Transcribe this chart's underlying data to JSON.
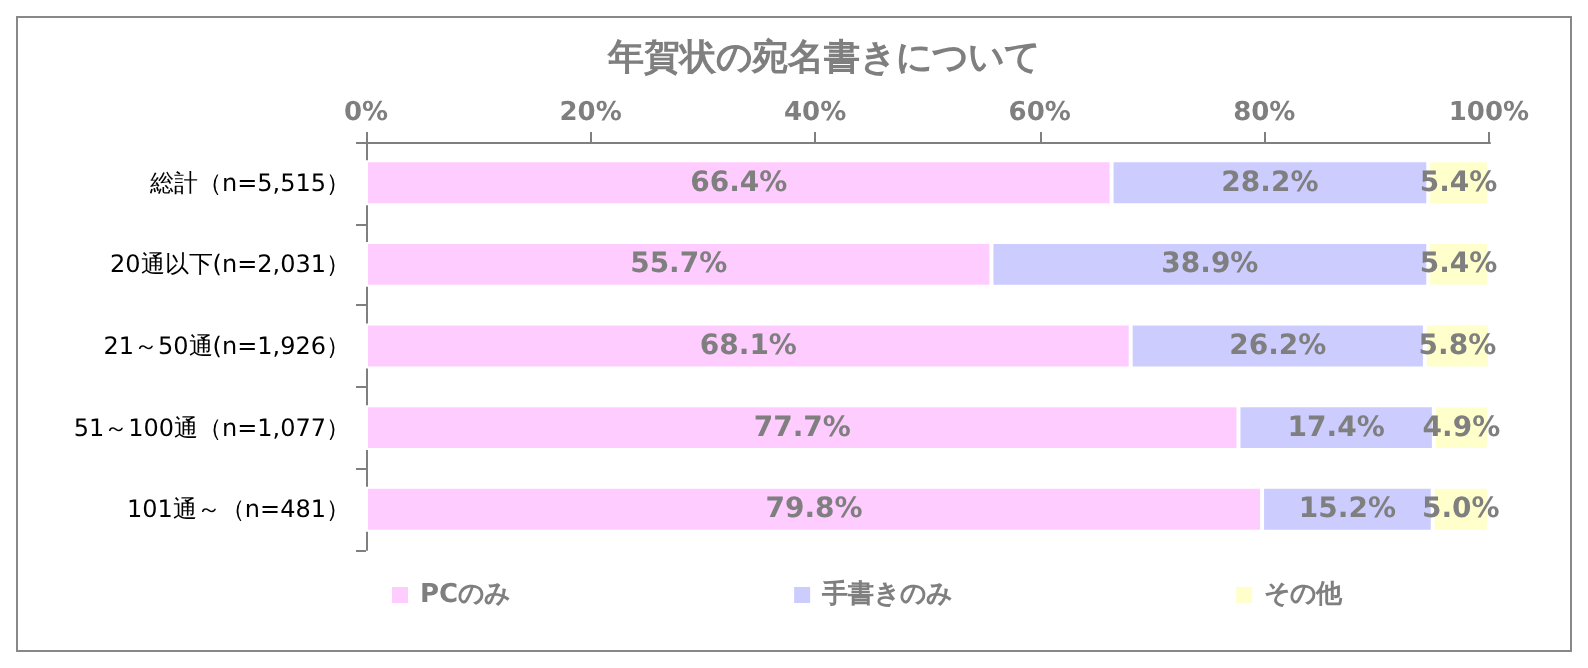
{
  "chart_data": {
    "type": "bar",
    "orientation": "horizontal",
    "stacked": true,
    "title": "年賀状の宛名書きについて",
    "categories": [
      "総計（n=5,515）",
      "20通以下(n=2,031）",
      "21～50通(n=1,926）",
      "51～100通（n=1,077）",
      "101通～（n=481）"
    ],
    "series": [
      {
        "name": "PCのみ",
        "color": "#ffccff",
        "values": [
          66.4,
          55.7,
          68.1,
          77.7,
          79.8
        ],
        "value_labels": [
          "66.4%",
          "55.7%",
          "68.1%",
          "77.7%",
          "79.8%"
        ]
      },
      {
        "name": "手書きのみ",
        "color": "#ccccff",
        "values": [
          28.2,
          38.9,
          26.2,
          17.4,
          15.2
        ],
        "value_labels": [
          "28.2%",
          "38.9%",
          "26.2%",
          "17.4%",
          "15.2%"
        ]
      },
      {
        "name": "その他",
        "color": "#ffffcc",
        "values": [
          5.4,
          5.4,
          5.8,
          4.9,
          5.0
        ],
        "value_labels": [
          "5.4%",
          "5.4%",
          "5.8%",
          "4.9%",
          "5.0%"
        ]
      }
    ],
    "xlim": [
      0,
      100.1
    ],
    "xticks": [
      {
        "value": 0,
        "label": "0%"
      },
      {
        "value": 20,
        "label": "20%"
      },
      {
        "value": 40,
        "label": "40%"
      },
      {
        "value": 60,
        "label": "60%"
      },
      {
        "value": 80,
        "label": "80%"
      },
      {
        "value": 100,
        "label": "100%"
      }
    ],
    "grid": false,
    "legend": "bottom left"
  }
}
